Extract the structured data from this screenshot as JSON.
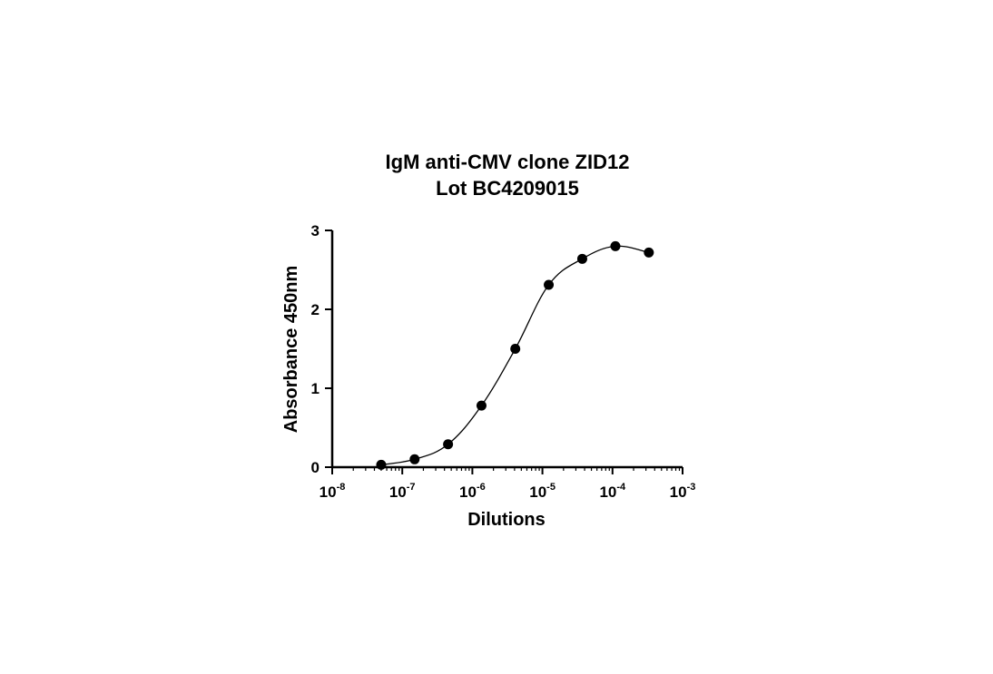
{
  "chart_data": {
    "type": "line",
    "title": [
      "IgM anti-CMV clone ZID12",
      "Lot BC4209015"
    ],
    "xlabel": "Dilutions",
    "ylabel": "Absorbance 450nm",
    "x_scale": "log",
    "xlim": [
      1e-08,
      0.001
    ],
    "ylim": [
      0,
      3
    ],
    "x_ticks": [
      {
        "base": "10",
        "exp": "-8",
        "value": 1e-08
      },
      {
        "base": "10",
        "exp": "-7",
        "value": 1e-07
      },
      {
        "base": "10",
        "exp": "-6",
        "value": 1e-06
      },
      {
        "base": "10",
        "exp": "-5",
        "value": 1e-05
      },
      {
        "base": "10",
        "exp": "-4",
        "value": 0.0001
      },
      {
        "base": "10",
        "exp": "-3",
        "value": 0.001
      }
    ],
    "y_ticks": [
      "0",
      "1",
      "2",
      "3"
    ],
    "grid": false,
    "series": [
      {
        "color": "#000000",
        "marker": "circle",
        "x": [
          5e-08,
          1.5e-07,
          4.5e-07,
          1.35e-06,
          4.1e-06,
          1.23e-05,
          3.7e-05,
          0.00011,
          0.00033
        ],
        "y": [
          0.03,
          0.1,
          0.29,
          0.78,
          1.5,
          2.31,
          2.64,
          2.8,
          2.72
        ]
      }
    ]
  }
}
